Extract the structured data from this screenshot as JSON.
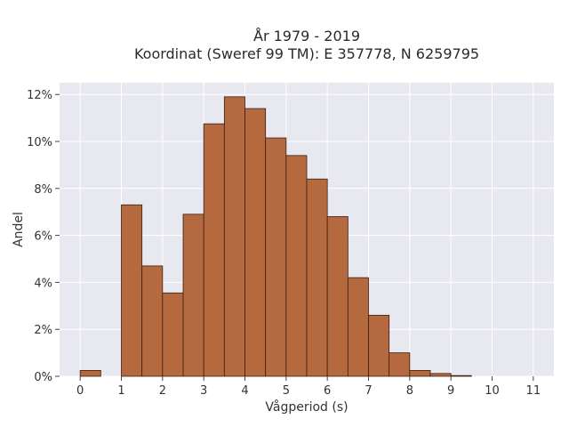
{
  "chart_data": {
    "type": "bar",
    "title_line1": "År 1979 - 2019",
    "title_line2": "Koordinat (Sweref 99 TM): E 357778, N 6259795",
    "xlabel": "Vågperiod (s)",
    "ylabel": "Andel",
    "bin_width": 0.5,
    "bin_starts": [
      0,
      0.5,
      1,
      1.5,
      2,
      2.5,
      3,
      3.5,
      4,
      4.5,
      5,
      5.5,
      6,
      6.5,
      7,
      7.5,
      8,
      8.5,
      9,
      9.5,
      10,
      10.5
    ],
    "values": [
      0.25,
      0,
      7.3,
      4.7,
      3.55,
      6.9,
      10.75,
      11.9,
      11.4,
      10.15,
      9.4,
      8.4,
      6.8,
      4.2,
      2.6,
      1.0,
      0.25,
      0.12,
      0.03,
      0,
      0,
      0
    ],
    "x_ticks": [
      "0",
      "1",
      "2",
      "3",
      "4",
      "5",
      "6",
      "7",
      "8",
      "9",
      "10",
      "11"
    ],
    "y_ticks": [
      "0%",
      "2%",
      "4%",
      "6%",
      "8%",
      "10%",
      "12%"
    ],
    "xlim": [
      -0.5,
      11.5
    ],
    "ylim": [
      0,
      12.5
    ],
    "grid": true,
    "bar_color": "#b5693f",
    "bar_edge_color": "#3a2010",
    "background_color": "#e8e8f0"
  }
}
